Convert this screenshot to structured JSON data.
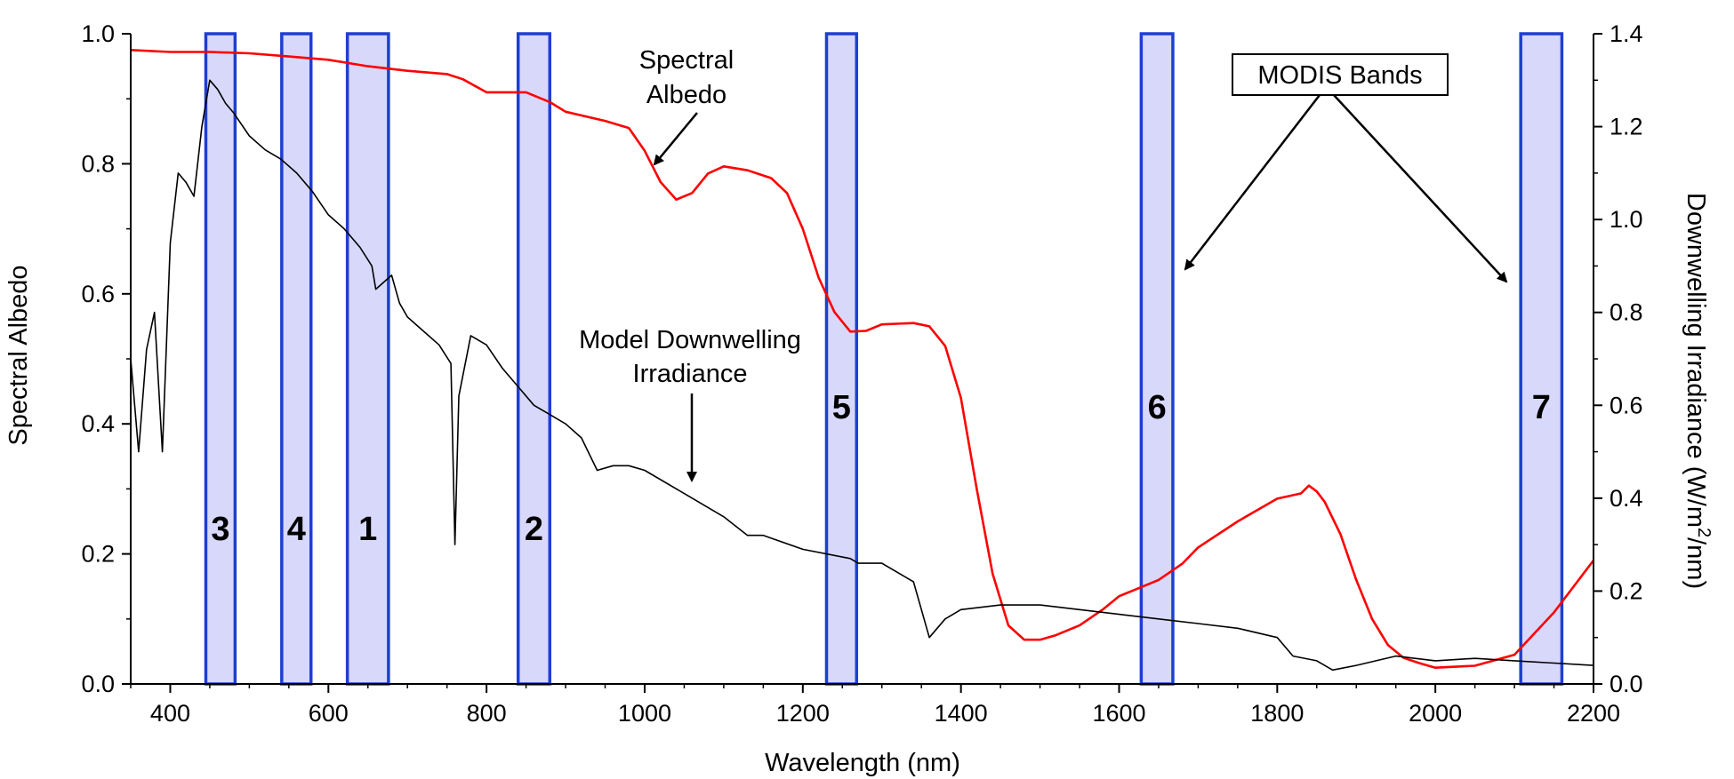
{
  "chart_data": {
    "type": "line",
    "title": "",
    "xlabel": "Wavelength (nm)",
    "ylabel_left": "Spectral Albedo",
    "ylabel_right_parts": [
      "Downwelling Irradiance (W/m",
      "2",
      "/nm)"
    ],
    "xlim": [
      350,
      2200
    ],
    "ylim_left": [
      0,
      1.0
    ],
    "ylim_right": [
      0,
      1.4
    ],
    "x_ticks": [
      400,
      600,
      800,
      1000,
      1200,
      1400,
      1600,
      1800,
      2000,
      2200
    ],
    "y_left_ticks": [
      0.0,
      0.2,
      0.4,
      0.6,
      0.8,
      1.0
    ],
    "y_right_ticks": [
      0.0,
      0.2,
      0.4,
      0.6,
      0.8,
      1.0,
      1.2,
      1.4
    ],
    "grid": false,
    "series": [
      {
        "name": "Spectral Albedo",
        "axis": "left",
        "color": "#ff0000",
        "x": [
          350,
          400,
          450,
          500,
          550,
          600,
          650,
          700,
          750,
          770,
          800,
          850,
          880,
          900,
          950,
          980,
          1000,
          1020,
          1040,
          1060,
          1080,
          1100,
          1130,
          1160,
          1180,
          1200,
          1220,
          1240,
          1260,
          1280,
          1300,
          1340,
          1360,
          1380,
          1400,
          1420,
          1440,
          1460,
          1480,
          1500,
          1520,
          1550,
          1580,
          1600,
          1620,
          1650,
          1680,
          1700,
          1750,
          1800,
          1830,
          1840,
          1850,
          1860,
          1880,
          1900,
          1920,
          1940,
          1960,
          1980,
          2000,
          2050,
          2100,
          2150,
          2200
        ],
        "y": [
          0.975,
          0.972,
          0.972,
          0.97,
          0.965,
          0.96,
          0.95,
          0.943,
          0.938,
          0.93,
          0.91,
          0.91,
          0.895,
          0.88,
          0.866,
          0.855,
          0.82,
          0.772,
          0.745,
          0.755,
          0.785,
          0.796,
          0.79,
          0.778,
          0.755,
          0.7,
          0.625,
          0.572,
          0.542,
          0.543,
          0.553,
          0.555,
          0.55,
          0.52,
          0.44,
          0.3,
          0.17,
          0.09,
          0.068,
          0.068,
          0.075,
          0.09,
          0.115,
          0.135,
          0.145,
          0.16,
          0.185,
          0.21,
          0.25,
          0.285,
          0.293,
          0.305,
          0.296,
          0.28,
          0.23,
          0.16,
          0.1,
          0.06,
          0.04,
          0.032,
          0.025,
          0.028,
          0.045,
          0.11,
          0.19
        ]
      },
      {
        "name": "Model Downwelling Irradiance",
        "axis": "right",
        "color": "#000000",
        "x": [
          350,
          360,
          370,
          380,
          390,
          400,
          410,
          420,
          430,
          440,
          450,
          460,
          470,
          480,
          500,
          520,
          540,
          560,
          580,
          600,
          620,
          640,
          655,
          660,
          680,
          690,
          700,
          720,
          740,
          755,
          760,
          765,
          780,
          800,
          820,
          840,
          860,
          880,
          900,
          920,
          940,
          960,
          980,
          1000,
          1050,
          1100,
          1130,
          1150,
          1200,
          1260,
          1270,
          1300,
          1340,
          1360,
          1380,
          1400,
          1450,
          1500,
          1550,
          1600,
          1650,
          1700,
          1750,
          1800,
          1820,
          1850,
          1870,
          1900,
          1950,
          2000,
          2050,
          2100,
          2150,
          2200
        ],
        "y": [
          0.7,
          0.5,
          0.72,
          0.8,
          0.5,
          0.95,
          1.1,
          1.08,
          1.05,
          1.2,
          1.3,
          1.28,
          1.25,
          1.23,
          1.18,
          1.15,
          1.13,
          1.1,
          1.06,
          1.01,
          0.98,
          0.94,
          0.9,
          0.85,
          0.88,
          0.82,
          0.79,
          0.76,
          0.73,
          0.69,
          0.3,
          0.62,
          0.75,
          0.73,
          0.68,
          0.64,
          0.6,
          0.58,
          0.56,
          0.53,
          0.46,
          0.47,
          0.47,
          0.46,
          0.41,
          0.36,
          0.32,
          0.32,
          0.29,
          0.27,
          0.26,
          0.26,
          0.22,
          0.1,
          0.14,
          0.16,
          0.17,
          0.17,
          0.16,
          0.15,
          0.14,
          0.13,
          0.12,
          0.1,
          0.06,
          0.05,
          0.03,
          0.04,
          0.06,
          0.05,
          0.055,
          0.05,
          0.045,
          0.04
        ]
      }
    ],
    "bands": [
      {
        "label": "3",
        "x0": 445,
        "x1": 482
      },
      {
        "label": "4",
        "x0": 541,
        "x1": 578
      },
      {
        "label": "1",
        "x0": 624,
        "x1": 676
      },
      {
        "label": "2",
        "x0": 840,
        "x1": 880
      },
      {
        "label": "5",
        "x0": 1230,
        "x1": 1268
      },
      {
        "label": "6",
        "x0": 1628,
        "x1": 1668
      },
      {
        "label": "7",
        "x0": 2108,
        "x1": 2160
      }
    ],
    "band_fill": "#d8d8fb",
    "band_stroke": "#1f3fd0",
    "annotations": {
      "albedo": [
        "Spectral",
        "Albedo"
      ],
      "irradiance": [
        "Model Downwelling",
        "Irradiance"
      ],
      "modis": "MODIS Bands"
    }
  }
}
